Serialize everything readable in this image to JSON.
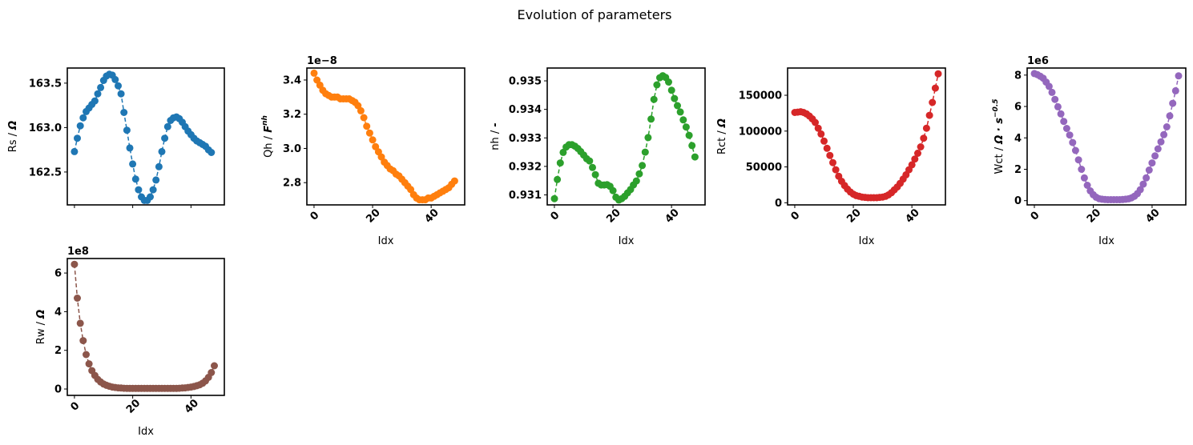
{
  "figure": {
    "title": "Evolution of parameters"
  },
  "chart_data": [
    {
      "type": "line",
      "marker": "circle",
      "linestyle": "dashed",
      "color": "#1f77b4",
      "ylabel": "Rs / Ω",
      "xlabel": "",
      "show_xticklabels": false,
      "xlim": [
        -2.45,
        51.45
      ],
      "ylim": [
        162.13,
        163.67
      ],
      "x_ticks": [
        0,
        20,
        40
      ],
      "y_ticks": [
        162.5,
        163.0,
        163.5
      ],
      "y_tick_labels": [
        "162.5",
        "163.0",
        "163.5"
      ],
      "offset_text": "",
      "values": [
        162.73,
        162.88,
        163.02,
        163.11,
        163.18,
        163.22,
        163.26,
        163.3,
        163.38,
        163.45,
        163.53,
        163.58,
        163.6,
        163.59,
        163.54,
        163.47,
        163.38,
        163.17,
        162.97,
        162.77,
        162.59,
        162.42,
        162.3,
        162.22,
        162.18,
        162.18,
        162.22,
        162.3,
        162.41,
        162.56,
        162.73,
        162.88,
        163.01,
        163.08,
        163.11,
        163.12,
        163.1,
        163.06,
        163.01,
        162.96,
        162.92,
        162.88,
        162.85,
        162.83,
        162.81,
        162.79,
        162.75,
        162.72
      ]
    },
    {
      "type": "line",
      "marker": "circle",
      "linestyle": "dashed",
      "color": "#ff7f0e",
      "ylabel": "Qh / F^nh",
      "xlabel": "Idx",
      "show_xticklabels": true,
      "xlim": [
        -2.45,
        51.45
      ],
      "ylim": [
        2.67,
        3.47
      ],
      "x_ticks": [
        0,
        20,
        40
      ],
      "y_ticks": [
        2.8,
        3.0,
        3.2,
        3.4
      ],
      "y_tick_labels": [
        "2.8",
        "3.0",
        "3.2",
        "3.4"
      ],
      "offset_text": "1e−8",
      "values": [
        3.44,
        3.4,
        3.37,
        3.34,
        3.32,
        3.31,
        3.3,
        3.3,
        3.3,
        3.29,
        3.29,
        3.29,
        3.29,
        3.28,
        3.27,
        3.25,
        3.22,
        3.18,
        3.13,
        3.09,
        3.05,
        3.01,
        2.98,
        2.95,
        2.92,
        2.9,
        2.88,
        2.87,
        2.85,
        2.84,
        2.82,
        2.8,
        2.78,
        2.76,
        2.73,
        2.71,
        2.7,
        2.7,
        2.7,
        2.71,
        2.71,
        2.72,
        2.73,
        2.74,
        2.75,
        2.76,
        2.77,
        2.79,
        2.81
      ]
    },
    {
      "type": "line",
      "marker": "circle",
      "linestyle": "dashed",
      "color": "#2ca02c",
      "ylabel": "nh / -",
      "xlabel": "Idx",
      "show_xticklabels": true,
      "xlim": [
        -2.45,
        51.45
      ],
      "ylim": [
        0.93065,
        0.93545
      ],
      "x_ticks": [
        0,
        20,
        40
      ],
      "y_ticks": [
        0.931,
        0.932,
        0.933,
        0.934,
        0.935
      ],
      "y_tick_labels": [
        "0.931",
        "0.932",
        "0.933",
        "0.934",
        "0.935"
      ],
      "offset_text": "",
      "values": [
        0.93087,
        0.93154,
        0.93212,
        0.93249,
        0.93268,
        0.93276,
        0.93276,
        0.93271,
        0.93263,
        0.93252,
        0.9324,
        0.93227,
        0.93219,
        0.93196,
        0.93171,
        0.93141,
        0.93135,
        0.93135,
        0.93136,
        0.9313,
        0.93115,
        0.93092,
        0.93082,
        0.93087,
        0.93095,
        0.93107,
        0.93119,
        0.93135,
        0.93149,
        0.93174,
        0.93203,
        0.9325,
        0.93301,
        0.93366,
        0.93435,
        0.93486,
        0.93511,
        0.93518,
        0.93512,
        0.93496,
        0.93467,
        0.93438,
        0.93413,
        0.93391,
        0.93363,
        0.93338,
        0.93309,
        0.93273,
        0.93233
      ]
    },
    {
      "type": "line",
      "marker": "circle",
      "linestyle": "dashed",
      "color": "#d62728",
      "ylabel": "Rct / Ω",
      "xlabel": "Idx",
      "show_xticklabels": true,
      "xlim": [
        -2.45,
        51.45
      ],
      "ylim": [
        -3000,
        188000
      ],
      "x_ticks": [
        0,
        20,
        40
      ],
      "y_ticks": [
        0,
        50000,
        100000,
        150000
      ],
      "y_tick_labels": [
        "0",
        "50000",
        "100000",
        "150000"
      ],
      "offset_text": "",
      "values": [
        126000,
        126500,
        127000,
        126000,
        124000,
        121000,
        117000,
        112000,
        104000,
        96000,
        86000,
        76000,
        66000,
        56000,
        46000,
        37000,
        30000,
        24000,
        19000,
        15000,
        12000,
        10000,
        9000,
        8000,
        7500,
        7000,
        7000,
        7000,
        7000,
        7500,
        8000,
        9000,
        11000,
        14000,
        18000,
        22000,
        27000,
        33000,
        39000,
        46000,
        53000,
        61000,
        69000,
        78000,
        90000,
        104000,
        122000,
        140000,
        160000,
        180000
      ]
    },
    {
      "type": "line",
      "marker": "circle",
      "linestyle": "dashed",
      "color": "#9467bd",
      "ylabel": "Wct / Ω · s^−0.5",
      "xlabel": "Idx",
      "show_xticklabels": true,
      "xlim": [
        -2.45,
        51.45
      ],
      "ylim": [
        -0.27,
        8.45
      ],
      "x_ticks": [
        0,
        20,
        40
      ],
      "y_ticks": [
        0,
        2,
        4,
        6,
        8
      ],
      "y_tick_labels": [
        "0",
        "2",
        "4",
        "6",
        "8"
      ],
      "offset_text": "1e6",
      "values": [
        8.1,
        8.03,
        7.93,
        7.8,
        7.55,
        7.28,
        6.9,
        6.45,
        5.98,
        5.53,
        5.05,
        4.6,
        4.18,
        3.7,
        3.2,
        2.6,
        2.0,
        1.45,
        0.98,
        0.62,
        0.38,
        0.22,
        0.13,
        0.09,
        0.07,
        0.06,
        0.06,
        0.06,
        0.06,
        0.06,
        0.07,
        0.09,
        0.12,
        0.18,
        0.28,
        0.45,
        0.7,
        1.05,
        1.45,
        1.95,
        2.4,
        2.85,
        3.3,
        3.75,
        4.2,
        4.7,
        5.4,
        6.2,
        7.0,
        7.95
      ]
    },
    {
      "type": "line",
      "marker": "circle",
      "linestyle": "dashed",
      "color": "#8c564b",
      "ylabel": "Rw / Ω",
      "xlabel": "Idx",
      "show_xticklabels": true,
      "xlim": [
        -2.45,
        51.45
      ],
      "ylim": [
        -0.33,
        6.75
      ],
      "x_ticks": [
        0,
        20,
        40
      ],
      "y_ticks": [
        0,
        2,
        4,
        6
      ],
      "y_tick_labels": [
        "0",
        "2",
        "4",
        "6"
      ],
      "offset_text": "1e8",
      "values": [
        6.45,
        4.7,
        3.4,
        2.5,
        1.78,
        1.3,
        0.95,
        0.7,
        0.5,
        0.36,
        0.26,
        0.19,
        0.14,
        0.1,
        0.08,
        0.06,
        0.05,
        0.04,
        0.035,
        0.03,
        0.03,
        0.03,
        0.03,
        0.03,
        0.03,
        0.03,
        0.03,
        0.03,
        0.03,
        0.03,
        0.03,
        0.03,
        0.03,
        0.03,
        0.03,
        0.03,
        0.04,
        0.05,
        0.06,
        0.08,
        0.1,
        0.13,
        0.17,
        0.22,
        0.3,
        0.42,
        0.6,
        0.85,
        1.2
      ]
    }
  ]
}
